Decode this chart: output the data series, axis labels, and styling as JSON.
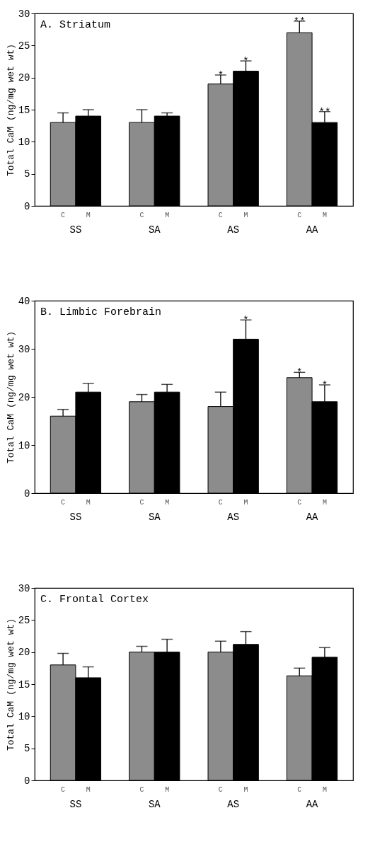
{
  "chart_data": [
    {
      "type": "bar",
      "title": "A.  Striatum",
      "ylabel": "Total CaM (ng/mg wet wt)",
      "categories": [
        "SS",
        "SA",
        "AS",
        "AA"
      ],
      "ylim": [
        0,
        30
      ],
      "yticks": [
        0,
        5,
        10,
        15,
        20,
        25,
        30
      ],
      "series": [
        {
          "name": "C",
          "color": "#8c8c8c",
          "values": [
            13,
            13,
            19,
            27
          ],
          "errors": [
            1.5,
            2,
            1.4,
            1.8
          ]
        },
        {
          "name": "M",
          "color": "#000000",
          "values": [
            14,
            14,
            21,
            13
          ],
          "errors": [
            1,
            0.5,
            1.6,
            1.7
          ]
        }
      ],
      "annotations": [
        {
          "text": "*",
          "x": "AS",
          "y": 19
        },
        {
          "text": "*",
          "x": "AS",
          "y": 21
        },
        {
          "text": "**",
          "x": "AA",
          "y": 27
        },
        {
          "text": "**",
          "x": "AA",
          "y": 13
        }
      ]
    },
    {
      "type": "bar",
      "title": "B.  Limbic Forebrain",
      "ylabel": "Total CaM (ng/mg wet wt)",
      "categories": [
        "SS",
        "SA",
        "AS",
        "AA"
      ],
      "ylim": [
        0,
        40
      ],
      "yticks": [
        0,
        10,
        20,
        30,
        40
      ],
      "series": [
        {
          "name": "C",
          "color": "#8c8c8c",
          "values": [
            16,
            19,
            18,
            24
          ],
          "errors": [
            1.4,
            1.5,
            3,
            1.1
          ]
        },
        {
          "name": "M",
          "color": "#000000",
          "values": [
            21,
            21,
            32,
            19
          ],
          "errors": [
            1.8,
            1.6,
            4,
            3.5
          ]
        }
      ],
      "annotations": [
        {
          "text": "*",
          "x": "AS",
          "y": 32
        },
        {
          "text": "*",
          "x": "AA",
          "y": 24
        },
        {
          "text": "*",
          "x": "AA",
          "y": 19
        }
      ]
    },
    {
      "type": "bar",
      "title": "C.  Frontal Cortex",
      "ylabel": "Total CaM (ng/mg wet wt)",
      "categories": [
        "SS",
        "SA",
        "AS",
        "AA"
      ],
      "ylim": [
        0,
        30
      ],
      "yticks": [
        0,
        5,
        10,
        15,
        20,
        25,
        30
      ],
      "series": [
        {
          "name": "C",
          "color": "#8c8c8c",
          "values": [
            18,
            20,
            20,
            16.3
          ],
          "errors": [
            1.8,
            0.9,
            1.7,
            1.2
          ]
        },
        {
          "name": "M",
          "color": "#000000",
          "values": [
            16,
            20,
            21.2,
            19.2
          ],
          "errors": [
            1.7,
            2,
            2,
            1.5
          ]
        }
      ]
    }
  ]
}
